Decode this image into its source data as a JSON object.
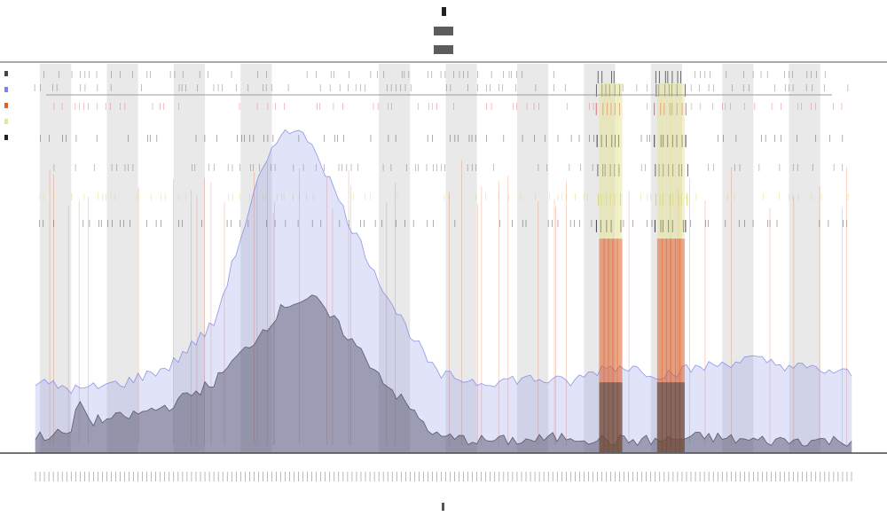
{
  "chart_data": {
    "type": "area",
    "grid": false,
    "legend_position": "left",
    "x": {
      "count": 184,
      "tick_marks_per_label": 1
    },
    "colors": {
      "band": "#e9e9e9",
      "baseline_series": "#3c3c3c",
      "blue_series": "#7c82e6",
      "orange_series": "#e0602a",
      "red_series": "#d9231c",
      "yellow_series": "#e6e49a",
      "axis": "#555555",
      "reference_line": "#9a9a9a"
    },
    "shaded_bands": [
      [
        1,
        8
      ],
      [
        16,
        23
      ],
      [
        31,
        38
      ],
      [
        46,
        53
      ],
      [
        77,
        84
      ],
      [
        92,
        99
      ],
      [
        108,
        115
      ],
      [
        123,
        130
      ],
      [
        138,
        145
      ],
      [
        154,
        161
      ],
      [
        169,
        176
      ]
    ],
    "series": [
      {
        "key": "baseline",
        "color": "#3c3c3c",
        "profile": [
          [
            0,
            4
          ],
          [
            8,
            5
          ],
          [
            10,
            14
          ],
          [
            12,
            8
          ],
          [
            20,
            9
          ],
          [
            30,
            12
          ],
          [
            40,
            18
          ],
          [
            50,
            30
          ],
          [
            56,
            38
          ],
          [
            62,
            40
          ],
          [
            70,
            30
          ],
          [
            80,
            16
          ],
          [
            90,
            4
          ],
          [
            100,
            3
          ],
          [
            110,
            3
          ],
          [
            120,
            4
          ],
          [
            128,
            3
          ],
          [
            133,
            3
          ],
          [
            140,
            3
          ],
          [
            150,
            4
          ],
          [
            160,
            3
          ],
          [
            170,
            3
          ],
          [
            184,
            3
          ]
        ]
      },
      {
        "key": "blue",
        "color": "#7c82e6",
        "profile": [
          [
            0,
            18
          ],
          [
            10,
            16
          ],
          [
            20,
            18
          ],
          [
            30,
            22
          ],
          [
            40,
            33
          ],
          [
            50,
            70
          ],
          [
            56,
            84
          ],
          [
            62,
            80
          ],
          [
            70,
            60
          ],
          [
            80,
            38
          ],
          [
            90,
            20
          ],
          [
            100,
            18
          ],
          [
            110,
            19
          ],
          [
            120,
            18
          ],
          [
            128,
            22
          ],
          [
            133,
            22
          ],
          [
            140,
            20
          ],
          [
            150,
            22
          ],
          [
            160,
            24
          ],
          [
            170,
            22
          ],
          [
            184,
            20
          ]
        ]
      },
      {
        "key": "high-activity",
        "color": "#e0602a",
        "peaks": [
          [
            127,
            100
          ],
          [
            128,
            100
          ],
          [
            129,
            100
          ],
          [
            130,
            100
          ],
          [
            131,
            100
          ],
          [
            140,
            100
          ],
          [
            141,
            100
          ],
          [
            142,
            100
          ],
          [
            143,
            100
          ],
          [
            144,
            100
          ],
          [
            145,
            100
          ]
        ]
      }
    ],
    "ylim": [
      0,
      100
    ]
  }
}
